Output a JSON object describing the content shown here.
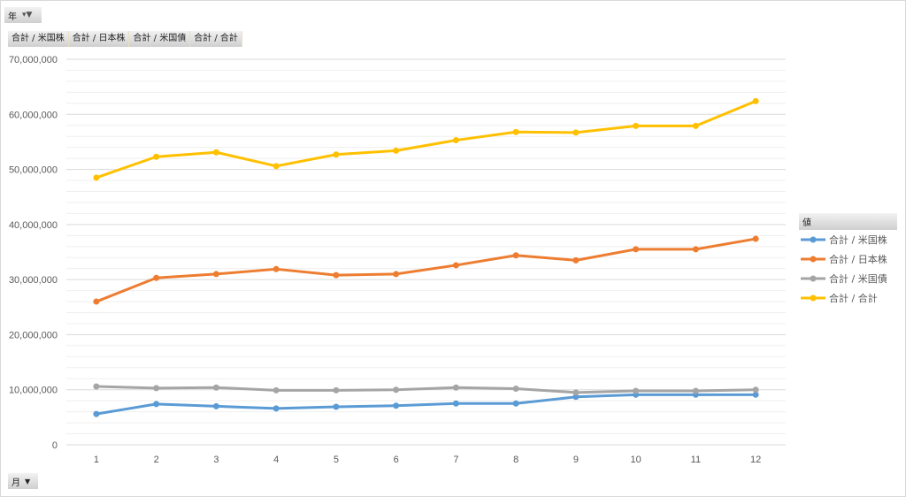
{
  "filters": {
    "year_label": "年",
    "month_label": "月"
  },
  "value_fields": [
    "合計 / 米国株",
    "合計 / 日本株",
    "合計 / 米国債",
    "合計 / 合計"
  ],
  "chart_data": {
    "type": "line",
    "title": "",
    "xlabel": "",
    "ylabel": "",
    "x": [
      "1",
      "2",
      "3",
      "4",
      "5",
      "6",
      "7",
      "8",
      "9",
      "10",
      "11",
      "12"
    ],
    "ylim": [
      0,
      70000000
    ],
    "yticks": [
      0,
      10000000,
      20000000,
      30000000,
      40000000,
      50000000,
      60000000,
      70000000
    ],
    "ytick_labels": [
      "0",
      "10,000,000",
      "20,000,000",
      "30,000,000",
      "40,000,000",
      "50,000,000",
      "60,000,000",
      "70,000,000"
    ],
    "grid": true,
    "legend_title": "値",
    "legend_position": "right",
    "series": [
      {
        "name": "合計 / 米国株",
        "color": "#5b9bd5",
        "values": [
          5600000,
          7400000,
          7000000,
          6600000,
          6900000,
          7100000,
          7500000,
          7500000,
          8700000,
          9100000,
          9100000,
          9100000
        ]
      },
      {
        "name": "合計 / 日本株",
        "color": "#ed7d31",
        "values": [
          26000000,
          30300000,
          31000000,
          31900000,
          30800000,
          31000000,
          32600000,
          34400000,
          33500000,
          35500000,
          35500000,
          37400000
        ]
      },
      {
        "name": "合計 / 米国債",
        "color": "#a5a5a5",
        "values": [
          10600000,
          10300000,
          10400000,
          9900000,
          9900000,
          10000000,
          10400000,
          10200000,
          9500000,
          9800000,
          9800000,
          10000000
        ]
      },
      {
        "name": "合計 / 合計",
        "color": "#ffc000",
        "values": [
          48500000,
          52300000,
          53100000,
          50600000,
          52700000,
          53400000,
          55300000,
          56800000,
          56700000,
          57900000,
          57900000,
          62400000
        ]
      }
    ]
  }
}
